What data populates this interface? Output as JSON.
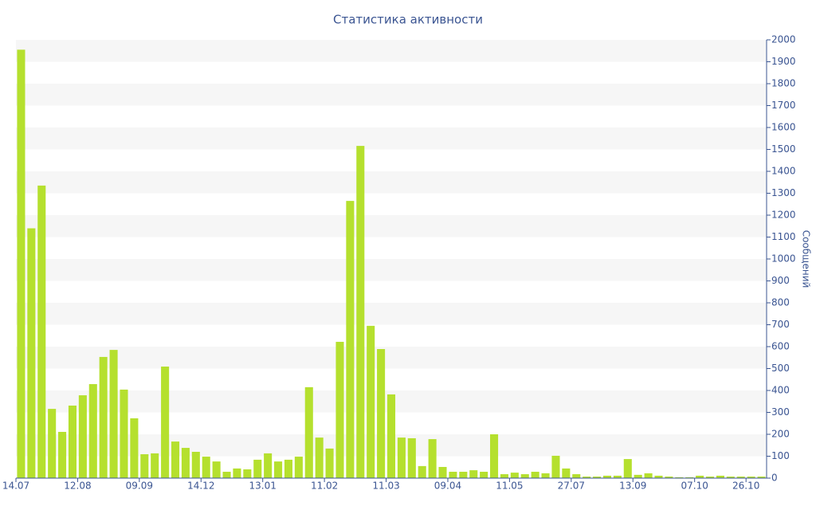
{
  "chart_data": {
    "type": "bar",
    "title": "Статистика активности",
    "y_label": "Сообщений",
    "categories": [
      "14.07",
      null,
      null,
      null,
      null,
      null,
      "12.08",
      null,
      null,
      null,
      null,
      null,
      "09.09",
      null,
      null,
      null,
      null,
      null,
      "14.12",
      null,
      null,
      null,
      null,
      null,
      "13.01",
      null,
      null,
      null,
      null,
      null,
      "11.02",
      null,
      null,
      null,
      null,
      null,
      "11.03",
      null,
      null,
      null,
      null,
      null,
      "09.04",
      null,
      null,
      null,
      null,
      null,
      "11.05",
      null,
      null,
      null,
      null,
      null,
      "27.07",
      null,
      null,
      null,
      null,
      null,
      "13.09",
      null,
      null,
      null,
      null,
      null,
      "07.10",
      null,
      null,
      null,
      null,
      "26.10",
      null
    ],
    "values": [
      1955,
      1140,
      1335,
      316,
      211,
      331,
      378,
      429,
      553,
      585,
      404,
      273,
      109,
      113,
      509,
      167,
      138,
      120,
      98,
      76,
      29,
      44,
      40,
      84,
      113,
      76,
      84,
      98,
      415,
      185,
      135,
      622,
      1265,
      1516,
      695,
      589,
      382,
      185,
      182,
      55,
      178,
      51,
      29,
      29,
      36,
      29,
      200,
      18,
      25,
      18,
      29,
      22,
      102,
      44,
      18,
      7,
      7,
      11,
      11,
      87,
      15,
      22,
      11,
      7,
      4,
      4,
      11,
      7,
      11,
      7,
      7,
      7,
      7
    ],
    "color": "#b5e02e",
    "ylim": [
      0,
      2000
    ],
    "yticks": [
      0,
      100,
      200,
      300,
      400,
      500,
      600,
      700,
      800,
      900,
      1000,
      1100,
      1200,
      1300,
      1400,
      1500,
      1600,
      1700,
      1800,
      1900,
      2000
    ],
    "grid": true,
    "y_axis_side": "right"
  }
}
